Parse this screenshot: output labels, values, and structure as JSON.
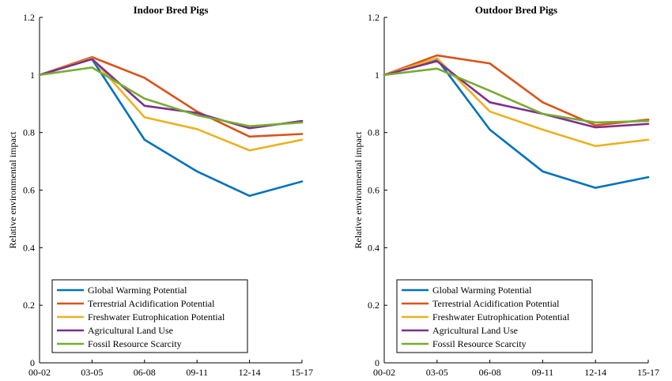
{
  "chart_data": [
    {
      "type": "line",
      "title": "Indoor Bred Pigs",
      "xlabel": "",
      "ylabel": "Relative environmental impact",
      "categories": [
        "00-02",
        "03-05",
        "06-08",
        "09-11",
        "12-14",
        "15-17"
      ],
      "ylim": [
        0,
        1.2
      ],
      "yticks": [
        "0",
        "0.2",
        "0.4",
        "0.6",
        "0.8",
        "1",
        "1.2"
      ],
      "legend_position": "bottom-left",
      "grid": false,
      "series": [
        {
          "name": "Global Warming Potential",
          "color": "#0072BD",
          "values": [
            1.0,
            1.055,
            0.775,
            0.665,
            0.58,
            0.63
          ]
        },
        {
          "name": "Terrestrial Acidification Potential",
          "color": "#D95319",
          "values": [
            1.0,
            1.062,
            0.99,
            0.873,
            0.786,
            0.795
          ]
        },
        {
          "name": "Freshwater Eutrophication Potential",
          "color": "#EDB120",
          "values": [
            1.0,
            1.058,
            0.853,
            0.812,
            0.738,
            0.775
          ]
        },
        {
          "name": "Agricultural Land Use",
          "color": "#7E2F8E",
          "values": [
            1.0,
            1.055,
            0.893,
            0.868,
            0.815,
            0.84
          ]
        },
        {
          "name": "Fossil Resource Scarcity",
          "color": "#77AC30",
          "values": [
            1.0,
            1.026,
            0.918,
            0.86,
            0.822,
            0.835
          ]
        }
      ]
    },
    {
      "type": "line",
      "title": "Outdoor Bred Pigs",
      "xlabel": "",
      "ylabel": "Relative environmental impact",
      "categories": [
        "00-02",
        "03-05",
        "06-08",
        "09-11",
        "12-14",
        "15-17"
      ],
      "ylim": [
        0,
        1.2
      ],
      "yticks": [
        "0",
        "0.2",
        "0.4",
        "0.6",
        "0.8",
        "1",
        "1.2"
      ],
      "legend_position": "bottom-left",
      "grid": false,
      "series": [
        {
          "name": "Global Warming Potential",
          "color": "#0072BD",
          "values": [
            1.0,
            1.055,
            0.81,
            0.665,
            0.608,
            0.645
          ]
        },
        {
          "name": "Terrestrial Acidification Potential",
          "color": "#D95319",
          "values": [
            1.0,
            1.068,
            1.04,
            0.905,
            0.825,
            0.845
          ]
        },
        {
          "name": "Freshwater Eutrophication Potential",
          "color": "#EDB120",
          "values": [
            1.0,
            1.058,
            0.873,
            0.81,
            0.753,
            0.775
          ]
        },
        {
          "name": "Agricultural Land Use",
          "color": "#7E2F8E",
          "values": [
            1.0,
            1.048,
            0.905,
            0.865,
            0.818,
            0.83
          ]
        },
        {
          "name": "Fossil Resource Scarcity",
          "color": "#77AC30",
          "values": [
            1.0,
            1.022,
            0.945,
            0.865,
            0.835,
            0.84
          ]
        }
      ]
    }
  ]
}
